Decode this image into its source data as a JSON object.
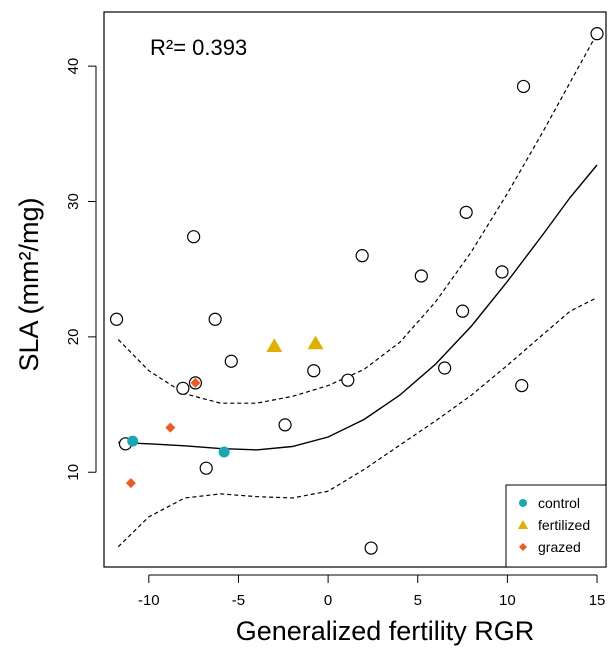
{
  "chart_data": {
    "type": "scatter",
    "title": "",
    "xlabel": "Generalized fertility RGR",
    "ylabel": "SLA (mm²/mg)",
    "xlim": [
      -12.5,
      15.5
    ],
    "ylim": [
      3.0,
      44.0
    ],
    "x_ticks": [
      -10,
      -5,
      0,
      5,
      10,
      15
    ],
    "y_ticks": [
      10,
      20,
      30,
      40
    ],
    "annotation": "R²= 0.393",
    "grid": false,
    "legend_position": "bottom-right",
    "legend": [
      {
        "name": "control",
        "marker": "circle-filled",
        "color": "#1aa7b5"
      },
      {
        "name": "fertilized",
        "marker": "triangle",
        "color": "#e0b000"
      },
      {
        "name": "grazed",
        "marker": "diamond",
        "color": "#f05a22"
      }
    ],
    "series": [
      {
        "name": "",
        "marker": "circle-open",
        "color": "#000000",
        "points": [
          [
            -11.8,
            21.3
          ],
          [
            -11.3,
            12.1
          ],
          [
            -8.1,
            16.2
          ],
          [
            -7.5,
            27.4
          ],
          [
            -7.4,
            16.6
          ],
          [
            -6.8,
            10.3
          ],
          [
            -6.3,
            21.3
          ],
          [
            -5.4,
            18.2
          ],
          [
            -2.4,
            13.5
          ],
          [
            -0.8,
            17.5
          ],
          [
            1.1,
            16.8
          ],
          [
            1.9,
            26.0
          ],
          [
            2.4,
            4.4
          ],
          [
            5.2,
            24.5
          ],
          [
            6.5,
            17.7
          ],
          [
            7.5,
            21.9
          ],
          [
            7.7,
            29.2
          ],
          [
            9.7,
            24.8
          ],
          [
            10.8,
            16.4
          ],
          [
            10.9,
            38.5
          ],
          [
            15.0,
            42.4
          ]
        ]
      },
      {
        "name": "control",
        "marker": "circle-filled",
        "color": "#1aa7b5",
        "points": [
          [
            -10.9,
            12.3
          ],
          [
            -5.8,
            11.5
          ]
        ]
      },
      {
        "name": "fertilized",
        "marker": "triangle",
        "color": "#e0b000",
        "points": [
          [
            -3.0,
            19.3
          ],
          [
            -0.7,
            19.5
          ]
        ]
      },
      {
        "name": "grazed",
        "marker": "diamond",
        "color": "#f05a22",
        "points": [
          [
            -11.0,
            9.2
          ],
          [
            -8.8,
            13.3
          ],
          [
            -7.4,
            16.6
          ]
        ]
      }
    ],
    "fit_line": {
      "style": "solid",
      "points": [
        [
          -11.7,
          12.2
        ],
        [
          -10,
          12.1
        ],
        [
          -8,
          11.95
        ],
        [
          -6,
          11.75
        ],
        [
          -4,
          11.65
        ],
        [
          -2,
          11.9
        ],
        [
          0,
          12.6
        ],
        [
          2,
          13.9
        ],
        [
          4,
          15.7
        ],
        [
          6,
          18.0
        ],
        [
          8,
          20.8
        ],
        [
          10,
          24.1
        ],
        [
          12,
          27.6
        ],
        [
          13.5,
          30.3
        ],
        [
          15,
          32.7
        ]
      ]
    },
    "ci_upper": {
      "style": "dashed",
      "points": [
        [
          -11.7,
          19.8
        ],
        [
          -10,
          17.5
        ],
        [
          -8,
          15.8
        ],
        [
          -6,
          15.1
        ],
        [
          -4,
          15.1
        ],
        [
          -2,
          15.6
        ],
        [
          0,
          16.4
        ],
        [
          2,
          17.6
        ],
        [
          4,
          19.6
        ],
        [
          6,
          22.6
        ],
        [
          8,
          26.3
        ],
        [
          10,
          30.6
        ],
        [
          12,
          35.2
        ],
        [
          13.5,
          38.8
        ],
        [
          15,
          42.4
        ]
      ]
    },
    "ci_lower": {
      "style": "dashed",
      "points": [
        [
          -11.7,
          4.5
        ],
        [
          -10,
          6.7
        ],
        [
          -8,
          8.1
        ],
        [
          -6,
          8.4
        ],
        [
          -4,
          8.2
        ],
        [
          -2,
          8.1
        ],
        [
          0,
          8.6
        ],
        [
          2,
          10.2
        ],
        [
          4,
          12.0
        ],
        [
          6,
          13.8
        ],
        [
          8,
          15.7
        ],
        [
          10,
          17.9
        ],
        [
          12,
          20.2
        ],
        [
          13.5,
          21.9
        ],
        [
          15,
          22.9
        ]
      ]
    }
  }
}
